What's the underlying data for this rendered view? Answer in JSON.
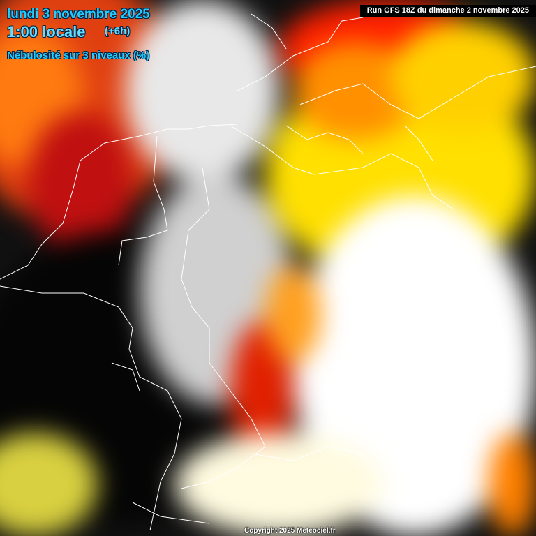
{
  "header": {
    "date": "lundi 3 novembre 2025",
    "time": "1:00 locale",
    "offset": "(+6h)",
    "parameter": "Nébulosité sur 3 niveaux (%)"
  },
  "run_label": "Run GFS 18Z du dimanche 2 novembre 2025",
  "copyright": "Copyright 2025 Meteociel.fr",
  "colors": {
    "title_text": "#22ccff",
    "borders": "#ffffff",
    "high_cloud": "#ffffff",
    "mid": "#ffee00",
    "low": "#ff2200",
    "clear": "#000000"
  }
}
